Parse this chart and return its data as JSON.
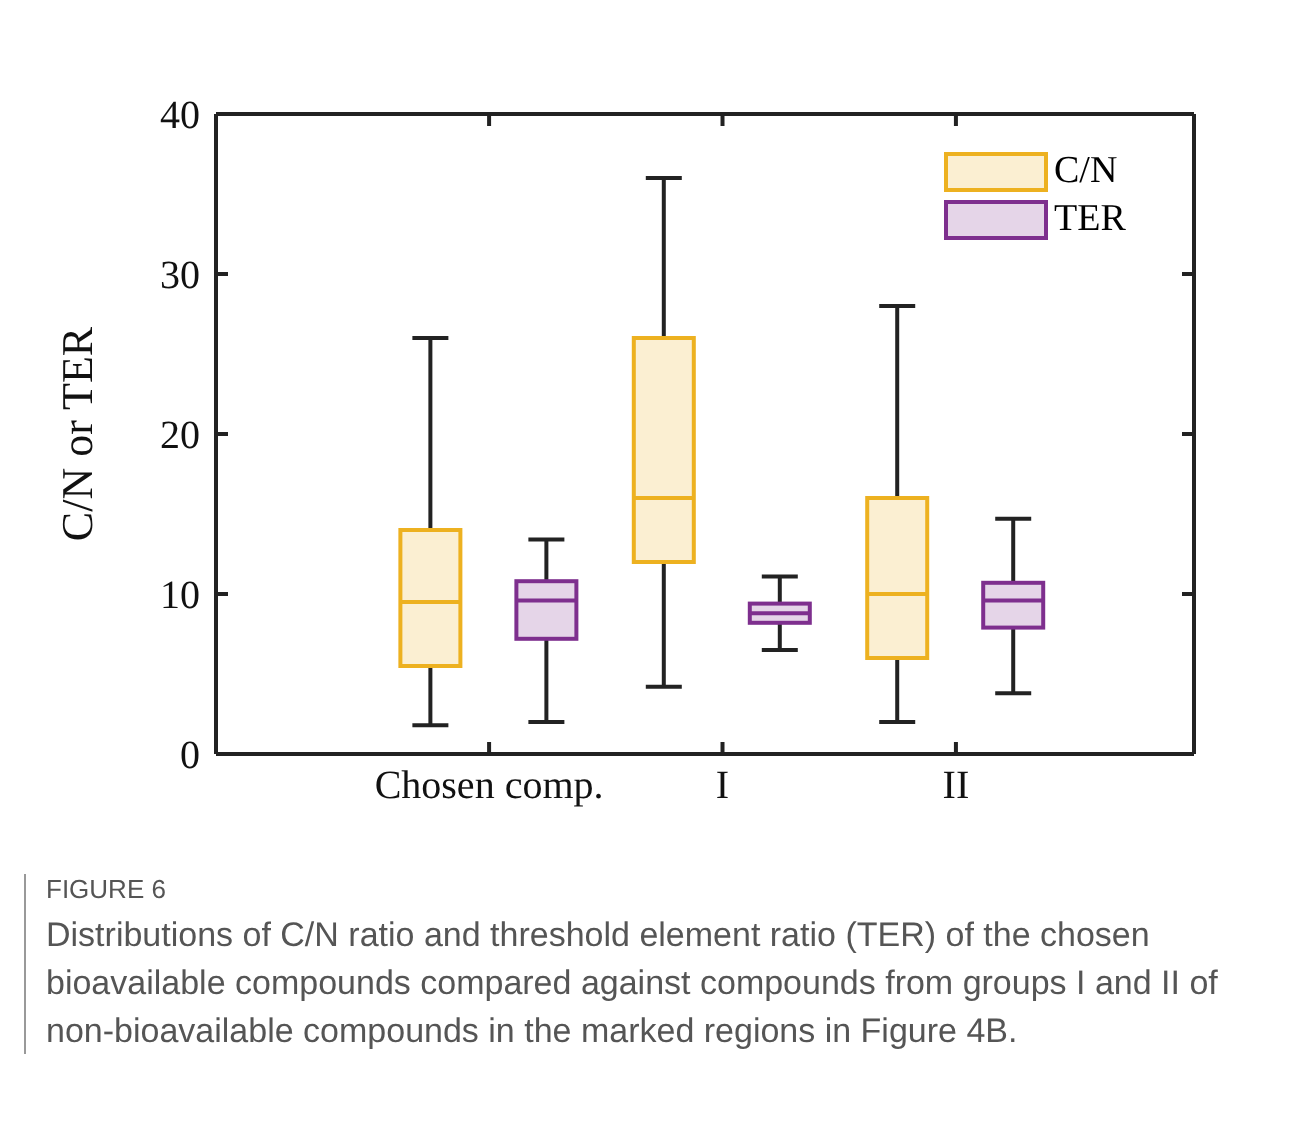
{
  "chart_data": {
    "type": "box",
    "categories": [
      "Chosen comp.",
      "I",
      "II"
    ],
    "ylabel": "C/N or TER",
    "ylim": [
      0,
      40
    ],
    "yticks": [
      0,
      10,
      20,
      30,
      40
    ],
    "grid": false,
    "legend": "top right",
    "series": [
      {
        "name": "C/N",
        "color": "#edb120",
        "boxes": [
          {
            "low": 1.8,
            "q1": 5.5,
            "median": 9.5,
            "q3": 14,
            "high": 26
          },
          {
            "low": 4.2,
            "q1": 12,
            "median": 16,
            "q3": 26,
            "high": 36
          },
          {
            "low": 2,
            "q1": 6,
            "median": 10,
            "q3": 16,
            "high": 28
          }
        ]
      },
      {
        "name": "TER",
        "color": "#7e2f8e",
        "boxes": [
          {
            "low": 2,
            "q1": 7.2,
            "median": 9.6,
            "q3": 10.8,
            "high": 13.4
          },
          {
            "low": 6.5,
            "q1": 8.2,
            "median": 8.8,
            "q3": 9.4,
            "high": 11.1
          },
          {
            "low": 3.8,
            "q1": 7.9,
            "median": 9.6,
            "q3": 10.7,
            "high": 14.7
          }
        ]
      }
    ],
    "annotations": [
      "FIGURE 6",
      "Distributions of C/N ratio and threshold element ratio (TER) of the chosen bioavailable compounds compared against compounds from groups I and II of non-bioavailable compounds in the marked regions in Figure 4B."
    ]
  }
}
